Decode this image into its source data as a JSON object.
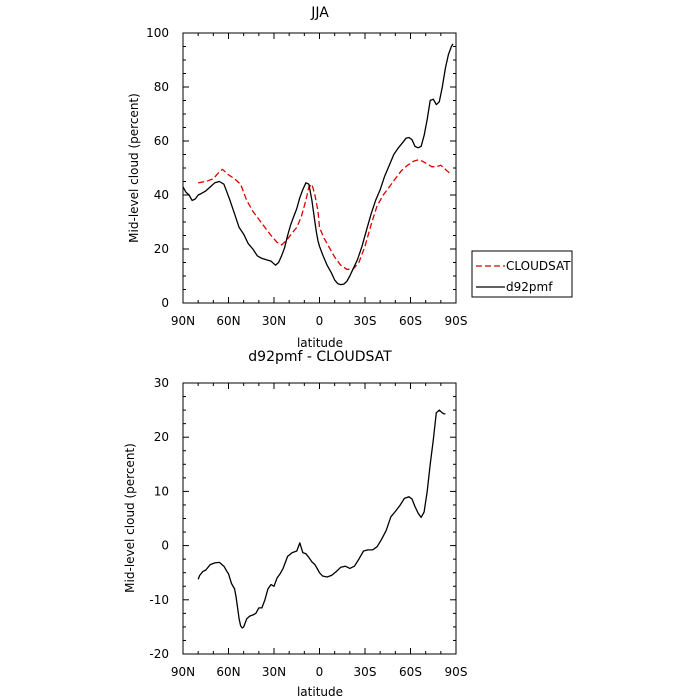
{
  "chart_data": [
    {
      "type": "line",
      "title": "JJA",
      "xlabel": "latitude",
      "ylabel": "Mid-level cloud (percent)",
      "x_axis": {
        "lim": [
          90,
          -90
        ],
        "ticks": [
          90,
          60,
          30,
          0,
          -30,
          -60,
          -90
        ],
        "tick_labels": [
          "90N",
          "60N",
          "30N",
          "0",
          "30S",
          "60S",
          "90S"
        ]
      },
      "y_axis": {
        "lim": [
          0,
          100
        ],
        "ticks": [
          0,
          20,
          40,
          60,
          80,
          100
        ],
        "tick_labels": [
          "0",
          "20",
          "40",
          "60",
          "80",
          "100"
        ]
      },
      "legend_placement": "outside-right-bottom",
      "series": [
        {
          "name": "CLOUDSAT",
          "color": "#dd0000",
          "dash": "dashed",
          "x": [
            80,
            75,
            70,
            67,
            64,
            60,
            56,
            52,
            48,
            44,
            40,
            36,
            32,
            28,
            25,
            22,
            18,
            15,
            12,
            9,
            7,
            5,
            3,
            1,
            0,
            -3,
            -6,
            -10,
            -14,
            -18,
            -22,
            -26,
            -30,
            -34,
            -38,
            -42,
            -46,
            -50,
            -54,
            -58,
            -62,
            -65,
            -68,
            -71,
            -74,
            -77,
            -80,
            -82,
            -84,
            -86
          ],
          "y": [
            44.5,
            45,
            46,
            48,
            49.5,
            47.5,
            46,
            44,
            38,
            34,
            31,
            28,
            25,
            22.5,
            21.5,
            23,
            26,
            28,
            32,
            38,
            43,
            44,
            40,
            34,
            28,
            24,
            21,
            17,
            14,
            12.5,
            12.5,
            15,
            21,
            29,
            36,
            40,
            43,
            46,
            49,
            51,
            52.5,
            53,
            52.5,
            51.5,
            50.5,
            50.5,
            51,
            50,
            49,
            48
          ]
        },
        {
          "name": "d92pmf",
          "color": "#000000",
          "dash": "solid",
          "x": [
            90,
            88,
            86,
            84,
            82,
            80,
            78,
            75,
            72,
            69,
            66,
            63,
            61,
            59,
            56,
            53,
            50,
            47,
            44,
            41,
            38,
            35,
            32,
            29,
            27,
            25,
            23,
            21,
            19,
            17,
            15,
            13,
            11,
            9,
            7,
            5,
            4,
            3,
            2,
            1,
            0,
            -2,
            -5,
            -8,
            -10,
            -12,
            -14,
            -16,
            -18,
            -20,
            -22,
            -25,
            -28,
            -31,
            -34,
            -37,
            -40,
            -43,
            -46,
            -49,
            -52,
            -55,
            -57,
            -59,
            -61,
            -63,
            -65,
            -67,
            -69,
            -71,
            -73,
            -75,
            -77,
            -79,
            -81,
            -83,
            -85,
            -87,
            -88
          ],
          "y": [
            43,
            41,
            40,
            38,
            38.5,
            40,
            40.5,
            41.5,
            43,
            44.5,
            45,
            44,
            41,
            38,
            33,
            28,
            25.5,
            22,
            20,
            17.5,
            16.5,
            16,
            15.5,
            14,
            15,
            17.5,
            20.5,
            25,
            29,
            32,
            35,
            39,
            42,
            44.5,
            44,
            38,
            34,
            30,
            26,
            23,
            21,
            18,
            14,
            11,
            8.5,
            7.2,
            6.8,
            7,
            8,
            10,
            12.5,
            16,
            21,
            27,
            33,
            38,
            42,
            47,
            51,
            55,
            57.5,
            59.5,
            61,
            61.3,
            60.5,
            58,
            57.5,
            58,
            62,
            68,
            75,
            75.5,
            73.5,
            74.5,
            80,
            87,
            92,
            95,
            96
          ]
        }
      ]
    },
    {
      "type": "line",
      "title": "d92pmf - CLOUDSAT",
      "xlabel": "latitude",
      "ylabel": "Mid-level cloud (percent)",
      "x_axis": {
        "lim": [
          90,
          -90
        ],
        "ticks": [
          90,
          60,
          30,
          0,
          -30,
          -60,
          -90
        ],
        "tick_labels": [
          "90N",
          "60N",
          "30N",
          "0",
          "30S",
          "60S",
          "90S"
        ]
      },
      "y_axis": {
        "lim": [
          -20,
          30
        ],
        "ticks": [
          -20,
          -10,
          0,
          10,
          20,
          30
        ],
        "tick_labels": [
          "-20",
          "-10",
          "0",
          "10",
          "20",
          "30"
        ]
      },
      "series": [
        {
          "color": "#000000",
          "dash": "solid",
          "x": [
            80,
            79,
            77,
            75,
            72,
            69,
            66,
            63,
            61,
            60,
            58,
            56,
            55,
            54,
            53,
            52,
            51,
            50,
            48,
            46,
            44,
            42,
            40,
            38,
            36,
            34,
            32,
            30,
            28,
            26,
            24,
            21,
            18,
            15,
            13,
            11,
            9,
            7,
            5,
            3,
            1,
            0,
            -2,
            -5,
            -8,
            -11,
            -14,
            -17,
            -20,
            -23,
            -26,
            -29,
            -32,
            -35,
            -38,
            -41,
            -44,
            -47,
            -50,
            -53,
            -56,
            -59,
            -61,
            -63,
            -65,
            -67,
            -69,
            -71,
            -73,
            -75,
            -77,
            -79,
            -81,
            -82,
            -83
          ],
          "y": [
            -6.2,
            -5.5,
            -4.8,
            -4.5,
            -3.5,
            -3.2,
            -3.1,
            -3.8,
            -4.8,
            -5.2,
            -7,
            -8,
            -9.5,
            -11.5,
            -13.5,
            -14.8,
            -15.2,
            -15,
            -13.5,
            -13,
            -12.8,
            -12.5,
            -11.5,
            -11.5,
            -10,
            -8,
            -7.2,
            -7.5,
            -6,
            -5.2,
            -4.2,
            -2,
            -1.3,
            -1,
            0.5,
            -1.3,
            -1.5,
            -2.2,
            -3,
            -3.5,
            -4.5,
            -5,
            -5.6,
            -5.8,
            -5.5,
            -4.8,
            -4,
            -3.8,
            -4.2,
            -3.8,
            -2.5,
            -1,
            -0.8,
            -0.8,
            -0.2,
            1.2,
            2.8,
            5.3,
            6.3,
            7.4,
            8.7,
            9,
            8.6,
            7.2,
            6,
            5.2,
            6.2,
            10,
            15,
            19.5,
            24.5,
            25,
            24.5,
            24.3,
            24.3
          ]
        }
      ]
    }
  ]
}
